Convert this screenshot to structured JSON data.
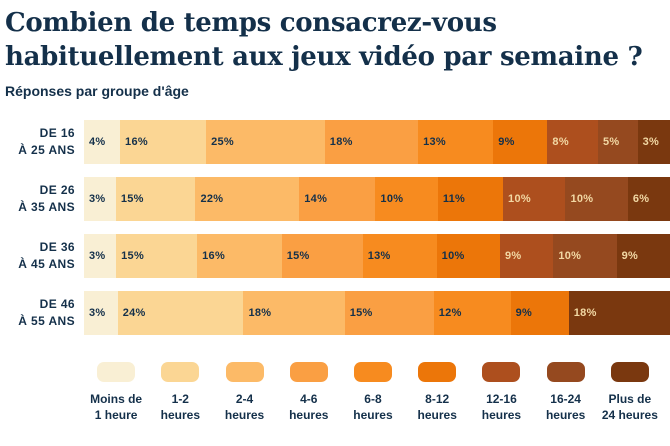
{
  "header": {
    "title_lines": [
      "Combien de temps consacrez-vous",
      "habituellement aux jeux vidéo par semaine ?"
    ],
    "subtitle": "Réponses par groupe d'âge"
  },
  "colors": {
    "background": "#ffffff",
    "text_dark": "#14304a",
    "label_on_dark": "#f2d8a4",
    "palette": [
      "#f9efd4",
      "#fbd694",
      "#fcba67",
      "#fa9f43",
      "#f78b1f",
      "#ec7609",
      "#ad4f1e",
      "#95491f",
      "#7a380f"
    ]
  },
  "chart_data": {
    "type": "bar",
    "orientation": "horizontal",
    "stacked": true,
    "unit": "%",
    "value_suffix": "%",
    "cream_label_from_series": 6,
    "title": "Combien de temps consacrez-vous habituellement aux jeux vidéo par semaine ?",
    "subtitle": "Réponses par groupe d'âge",
    "categories": [
      "De 16 à 25 ans",
      "De 26 à 35 ans",
      "De 36 à 45 ans",
      "De 46 à 55 ans"
    ],
    "category_labels": [
      [
        "DE 16",
        "À 25 ANS"
      ],
      [
        "DE 26",
        "À 35 ANS"
      ],
      [
        "DE 36",
        "À 45 ANS"
      ],
      [
        "DE 46",
        "À 55 ANS"
      ]
    ],
    "series": [
      {
        "name": "Moins de 1 heure",
        "legend_lines": [
          "Moins de",
          "1 heure"
        ],
        "values": [
          4,
          3,
          3,
          3
        ]
      },
      {
        "name": "1-2 heures",
        "legend_lines": [
          "1-2",
          "heures"
        ],
        "values": [
          16,
          15,
          15,
          24
        ]
      },
      {
        "name": "2-4 heures",
        "legend_lines": [
          "2-4",
          "heures"
        ],
        "values": [
          25,
          22,
          16,
          18
        ]
      },
      {
        "name": "4-6 heures",
        "legend_lines": [
          "4-6",
          "heures"
        ],
        "values": [
          18,
          14,
          15,
          15
        ]
      },
      {
        "name": "6-8 heures",
        "legend_lines": [
          "6-8",
          "heures"
        ],
        "values": [
          13,
          10,
          13,
          12
        ]
      },
      {
        "name": "8-12 heures",
        "legend_lines": [
          "8-12",
          "heures"
        ],
        "values": [
          9,
          11,
          10,
          9
        ]
      },
      {
        "name": "12-16 heures",
        "legend_lines": [
          "12-16",
          "heures"
        ],
        "values": [
          8,
          10,
          9,
          0
        ]
      },
      {
        "name": "16-24 heures",
        "legend_lines": [
          "16-24",
          "heures"
        ],
        "values": [
          5,
          10,
          10,
          0
        ]
      },
      {
        "name": "Plus de 24 heures",
        "legend_lines": [
          "Plus de",
          "24 heures"
        ],
        "values": [
          3,
          6,
          9,
          18
        ]
      }
    ],
    "legend_position": "bottom",
    "grid": false,
    "xlim": [
      0,
      100
    ]
  }
}
